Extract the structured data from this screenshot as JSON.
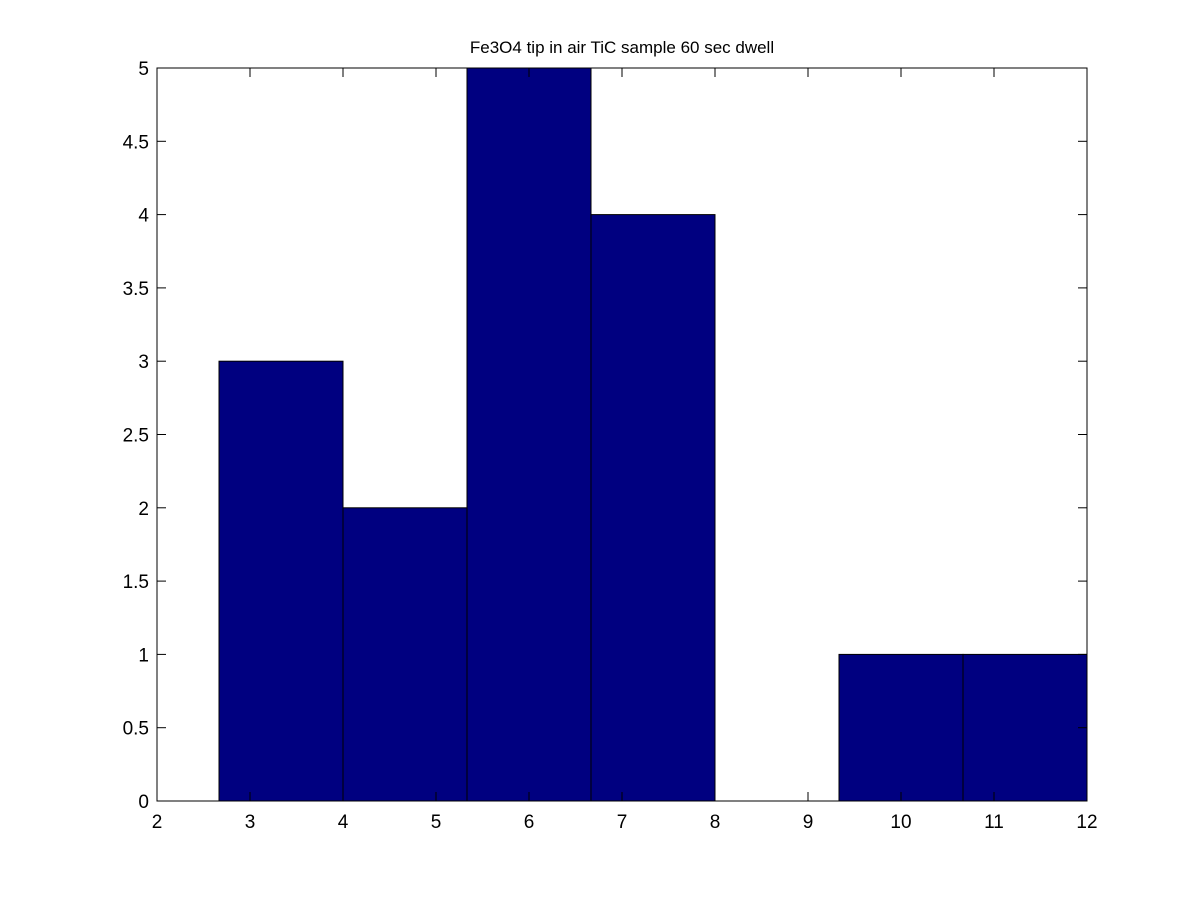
{
  "chart_data": {
    "type": "bar",
    "title": "Fe3O4 tip in air TiC sample 60 sec dwell",
    "xlabel": "",
    "ylabel": "",
    "xlim": [
      2,
      12
    ],
    "ylim": [
      0,
      5
    ],
    "xticks": [
      2,
      3,
      4,
      5,
      6,
      7,
      8,
      9,
      10,
      11,
      12
    ],
    "yticks": [
      0,
      0.5,
      1,
      1.5,
      2,
      2.5,
      3,
      3.5,
      4,
      4.5,
      5
    ],
    "grid": false,
    "bin_edges": [
      2.6667,
      4.0,
      5.3333,
      6.6667,
      8.0,
      9.3333,
      10.6667,
      12.0
    ],
    "values": [
      3,
      2,
      5,
      4,
      0,
      1,
      1
    ],
    "bar_color": "#000080",
    "edge_color": "#000000"
  }
}
